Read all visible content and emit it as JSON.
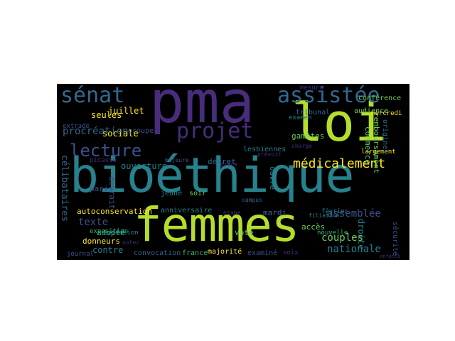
{
  "words": {
    "pma": "pma",
    "bioethique": "bioéthique",
    "femmes": "femmes",
    "loi": "loi",
    "senat": "sénat",
    "assistee": "assistée",
    "projet": "projet",
    "lecture": "lecture",
    "medicalement": "médicalement",
    "procreation": "procréation",
    "assemblee": "assemblée",
    "texte": "texte",
    "couples": "couples",
    "nationale": "nationale",
    "adopte": "adopté",
    "contre": "contre",
    "vote": "voté",
    "mardi": "mardi",
    "autoconservation": "autoconservation",
    "anniversaire": "anniversaire",
    "ouverture": "ouverture",
    "sociale": "sociale",
    "juillet": "juillet",
    "seules": "seules",
    "donneurs": "donneurs",
    "majorite": "majorité",
    "convocation": "convocation",
    "france": "france",
    "examine": "examiné",
    "voix": "voix",
    "acces": "accès",
    "droite": "droite",
    "decret": "décret",
    "soir": "soir",
    "paris": "paris",
    "celibataires": "célibataires",
    "lesbiennes": "lesbiennes",
    "gametes": "gamètes",
    "conference": "conférence",
    "audience": "audience",
    "tribunal": "tribunal",
    "examen": "examen",
    "mercredi": "mercredi",
    "commerce": "commerce",
    "remboursement": "remboursement",
    "origines": "origines",
    "fevrier": "février",
    "nouvelle": "nouvelle",
    "exposition": "exposition",
    "extension": "extension",
    "picasso": "picasso",
    "journal": "journal",
    "jeune": "jeune",
    "groupe": "groupe",
    "securite": "sécurité",
    "largement": "largement",
    "etape": "étape",
    "ouvre": "ouvre",
    "devrait": "devrait",
    "grace": "grâce",
    "mesure": "mesure",
    "extrade": "extradé",
    "filiation": "filiation",
    "prevoit": "prévoit",
    "noter": "noter",
    "campus": "campus",
    "majeure": "majeure",
    "charge": "charge",
    "enfants": "enfants"
  },
  "colors": {
    "background": "#000000",
    "purple": "#472d7b",
    "indigo": "#3b528b",
    "blue": "#31688e",
    "teal": "#26828e",
    "green": "#35b779",
    "lime": "#6ece58",
    "yellowgreen": "#b5de2b",
    "yellow": "#fde725"
  }
}
